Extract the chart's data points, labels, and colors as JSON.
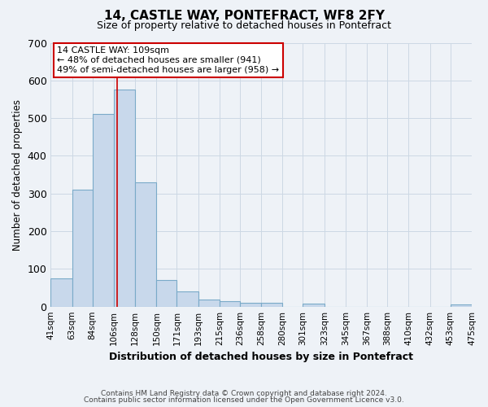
{
  "title": "14, CASTLE WAY, PONTEFRACT, WF8 2FY",
  "subtitle": "Size of property relative to detached houses in Pontefract",
  "xlabel": "Distribution of detached houses by size in Pontefract",
  "ylabel": "Number of detached properties",
  "bar_left_edges": [
    41,
    63,
    84,
    106,
    128,
    150,
    171,
    193,
    215,
    236,
    258,
    280,
    301,
    323,
    345,
    367,
    388,
    410,
    432,
    453
  ],
  "bar_widths": [
    22,
    21,
    22,
    22,
    22,
    21,
    22,
    22,
    21,
    22,
    22,
    21,
    22,
    22,
    22,
    21,
    22,
    22,
    21,
    22
  ],
  "bar_heights": [
    75,
    310,
    510,
    575,
    330,
    70,
    40,
    18,
    15,
    10,
    10,
    0,
    8,
    0,
    0,
    0,
    0,
    0,
    0,
    5
  ],
  "bar_color": "#c8d8eb",
  "bar_edge_color": "#7aaac8",
  "tick_labels": [
    "41sqm",
    "63sqm",
    "84sqm",
    "106sqm",
    "128sqm",
    "150sqm",
    "171sqm",
    "193sqm",
    "215sqm",
    "236sqm",
    "258sqm",
    "280sqm",
    "301sqm",
    "323sqm",
    "345sqm",
    "367sqm",
    "388sqm",
    "410sqm",
    "432sqm",
    "453sqm",
    "475sqm"
  ],
  "ylim": [
    0,
    700
  ],
  "yticks": [
    0,
    100,
    200,
    300,
    400,
    500,
    600,
    700
  ],
  "property_line_x": 109,
  "annotation_title": "14 CASTLE WAY: 109sqm",
  "annotation_line1": "← 48% of detached houses are smaller (941)",
  "annotation_line2": "49% of semi-detached houses are larger (958) →",
  "annotation_box_color": "#ffffff",
  "annotation_box_edge": "#cc0000",
  "property_line_color": "#cc0000",
  "grid_color": "#ccd8e4",
  "background_color": "#eef2f7",
  "footer_line1": "Contains HM Land Registry data © Crown copyright and database right 2024.",
  "footer_line2": "Contains public sector information licensed under the Open Government Licence v3.0."
}
